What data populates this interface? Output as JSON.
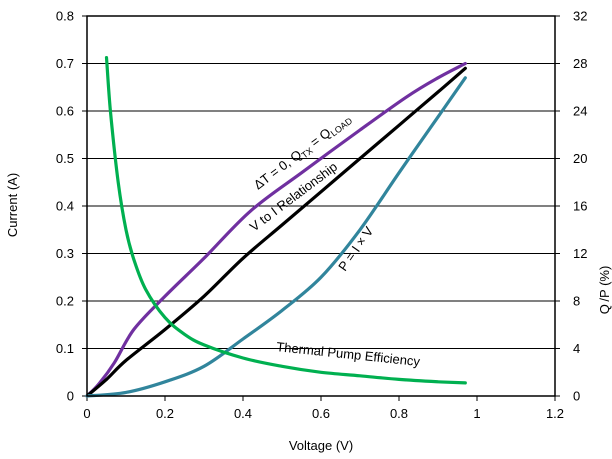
{
  "chart_data": {
    "type": "line",
    "xlabel": "Voltage (V)",
    "ylabel": "Current (A)",
    "y2label": "Q /P (%)",
    "xlim": [
      0,
      1.2
    ],
    "ylim": [
      0,
      0.8
    ],
    "y2lim": [
      0,
      32
    ],
    "x_ticks": [
      "0",
      "0.2",
      "0.4",
      "0.6",
      "0.8",
      "1",
      "1.2"
    ],
    "y_ticks": [
      "0",
      "0.1",
      "0.2",
      "0.3",
      "0.4",
      "0.5",
      "0.6",
      "0.7",
      "0.8"
    ],
    "y2_ticks": [
      "0",
      "4",
      "8",
      "12",
      "16",
      "20",
      "24",
      "28",
      "32"
    ],
    "grid": "horizontal",
    "series": [
      {
        "name": "ΔT = 0, Q_TX = Q_LOAD",
        "axis": "left",
        "color": "#7030a0",
        "x": [
          0,
          0.03,
          0.07,
          0.12,
          0.2,
          0.3,
          0.42,
          0.55,
          0.7,
          0.82,
          0.9,
          0.97
        ],
        "y": [
          0,
          0.025,
          0.07,
          0.14,
          0.21,
          0.29,
          0.39,
          0.47,
          0.56,
          0.63,
          0.67,
          0.7
        ]
      },
      {
        "name": "V to I Relationship",
        "axis": "left",
        "color": "#000000",
        "x": [
          0,
          0.05,
          0.1,
          0.2,
          0.3,
          0.4,
          0.5,
          0.6,
          0.7,
          0.8,
          0.9,
          0.97
        ],
        "y": [
          0,
          0.035,
          0.075,
          0.14,
          0.21,
          0.29,
          0.36,
          0.43,
          0.5,
          0.57,
          0.64,
          0.69
        ]
      },
      {
        "name": "P = I × V",
        "axis": "right",
        "color": "#31859c",
        "x": [
          0,
          0.1,
          0.2,
          0.3,
          0.4,
          0.5,
          0.6,
          0.7,
          0.8,
          0.9,
          0.97
        ],
        "y": [
          0,
          0.3,
          1.2,
          2.5,
          4.8,
          7.2,
          10.0,
          14.0,
          18.8,
          23.5,
          26.8
        ]
      },
      {
        "name": "Thermal Pump Efficiency",
        "axis": "right",
        "color": "#00b050",
        "x": [
          0.05,
          0.06,
          0.08,
          0.1,
          0.12,
          0.15,
          0.2,
          0.25,
          0.3,
          0.4,
          0.5,
          0.6,
          0.7,
          0.8,
          0.9,
          0.97
        ],
        "y": [
          28.5,
          24.0,
          18.0,
          14.0,
          11.5,
          9.0,
          6.6,
          5.2,
          4.3,
          3.2,
          2.5,
          2.0,
          1.7,
          1.4,
          1.2,
          1.1
        ]
      }
    ],
    "annotations": {
      "delta_prefix": "ΔT = 0, Q",
      "tx_sub": "TX",
      "equals": " = Q",
      "load_sub": "LOAD",
      "vi": "V to I Relationship",
      "power": "P = I × V",
      "efficiency": "Thermal Pump Efficiency"
    }
  }
}
